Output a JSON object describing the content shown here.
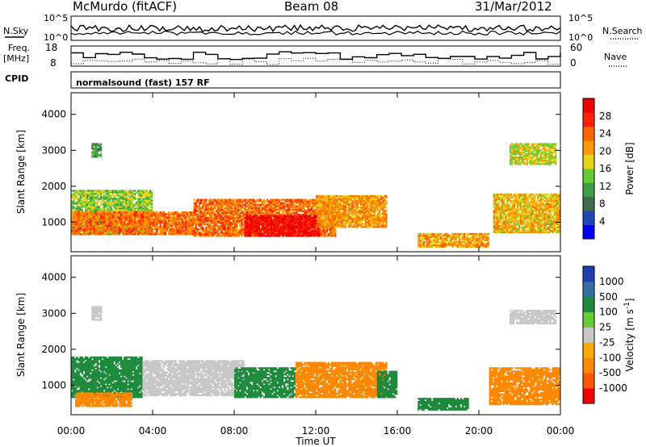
{
  "header": {
    "station": "McMurdo (fitACF)",
    "beam": "Beam 08",
    "date": "31/Mar/2012"
  },
  "panels": {
    "nsky": {
      "label": "N.Sky",
      "right_label": "N.Search",
      "left_ticks": [
        "10^5",
        "10^0"
      ],
      "right_ticks": [
        "10^5",
        "10^0"
      ]
    },
    "freq": {
      "label_line1": "Freq.",
      "label_line2": "[MHz]",
      "left_ticks": [
        "18",
        "8"
      ],
      "right_label": "Nave",
      "right_ticks": [
        "60",
        "0"
      ]
    },
    "cpid": {
      "label": "CPID",
      "text": "normalsound (fast) 157 RF"
    }
  },
  "colors": {
    "power": [
      "#0000ff",
      "#1f48b8",
      "#3c6e4a",
      "#3f9e4a",
      "#66cc33",
      "#e6d21a",
      "#ff9900",
      "#ff6600",
      "#ff2200",
      "#ee0000"
    ],
    "velocity": [
      "#1f3fb0",
      "#2f6fa8",
      "#1e8a3c",
      "#66cc33",
      "#c8c8c8",
      "#ffaa00",
      "#ff8800",
      "#ff5500",
      "#ee0000"
    ]
  },
  "chart_data": [
    {
      "type": "heatmap",
      "title": "",
      "ylabel": "Slant Range [km]",
      "xlabel": "",
      "ylim": [
        180,
        4600
      ],
      "yticks": [
        "1000",
        "2000",
        "3000",
        "4000"
      ],
      "colorbar": {
        "label": "Power [dB]",
        "ticks": [
          "28",
          "24",
          "20",
          "16",
          "12",
          "8",
          "4"
        ],
        "range": [
          0,
          30
        ]
      },
      "regions": [
        {
          "t0": 0.0,
          "t1": 4.0,
          "r0": 650,
          "r1": 1900,
          "value": 14
        },
        {
          "t0": 0.0,
          "t1": 6.0,
          "r0": 650,
          "r1": 1300,
          "value": 22
        },
        {
          "t0": 6.0,
          "t1": 13.0,
          "r0": 600,
          "r1": 1650,
          "value": 22
        },
        {
          "t0": 8.5,
          "t1": 12.2,
          "r0": 600,
          "r1": 1200,
          "value": 28
        },
        {
          "t0": 12.0,
          "t1": 15.5,
          "r0": 850,
          "r1": 1750,
          "value": 20
        },
        {
          "t0": 1.0,
          "t1": 1.5,
          "r0": 2800,
          "r1": 3200,
          "value": 10
        },
        {
          "t0": 17.0,
          "t1": 20.5,
          "r0": 300,
          "r1": 700,
          "value": 20
        },
        {
          "t0": 20.7,
          "t1": 24.0,
          "r0": 700,
          "r1": 1800,
          "value": 18
        },
        {
          "t0": 21.5,
          "t1": 23.8,
          "r0": 2600,
          "r1": 3200,
          "value": 16
        }
      ],
      "x_tick_labels": [
        "00:00",
        "04:00",
        "08:00",
        "12:00",
        "16:00",
        "20:00",
        "00:00"
      ]
    },
    {
      "type": "heatmap",
      "title": "",
      "ylabel": "Slant Range [km]",
      "xlabel": "Time UT",
      "ylim": [
        180,
        4600
      ],
      "yticks": [
        "1000",
        "2000",
        "3000",
        "4000"
      ],
      "colorbar": {
        "label": "Velocity [m s^-1]",
        "ticks": [
          "1000",
          "500",
          "100",
          "25",
          "-25",
          "-100",
          "-500",
          "-1000"
        ]
      },
      "regions": [
        {
          "t0": 0.0,
          "t1": 3.5,
          "r0": 650,
          "r1": 1800,
          "value": 60
        },
        {
          "t0": 3.5,
          "t1": 8.5,
          "r0": 700,
          "r1": 1700,
          "value": 0
        },
        {
          "t0": 0.2,
          "t1": 3.0,
          "r0": 400,
          "r1": 800,
          "value": -100
        },
        {
          "t0": 8.0,
          "t1": 11.0,
          "r0": 650,
          "r1": 1500,
          "value": 60
        },
        {
          "t0": 11.0,
          "t1": 15.5,
          "r0": 650,
          "r1": 1650,
          "value": -100
        },
        {
          "t0": 15.0,
          "t1": 16.0,
          "r0": 650,
          "r1": 1400,
          "value": 60
        },
        {
          "t0": 17.0,
          "t1": 19.5,
          "r0": 300,
          "r1": 650,
          "value": 60
        },
        {
          "t0": 20.5,
          "t1": 24.0,
          "r0": 450,
          "r1": 1500,
          "value": -100
        },
        {
          "t0": 21.5,
          "t1": 23.8,
          "r0": 2700,
          "r1": 3100,
          "value": 0
        },
        {
          "t0": 1.0,
          "t1": 1.5,
          "r0": 2800,
          "r1": 3200,
          "value": 0
        }
      ],
      "x_tick_labels": [
        "00:00",
        "04:00",
        "08:00",
        "12:00",
        "16:00",
        "20:00",
        "00:00"
      ]
    }
  ]
}
